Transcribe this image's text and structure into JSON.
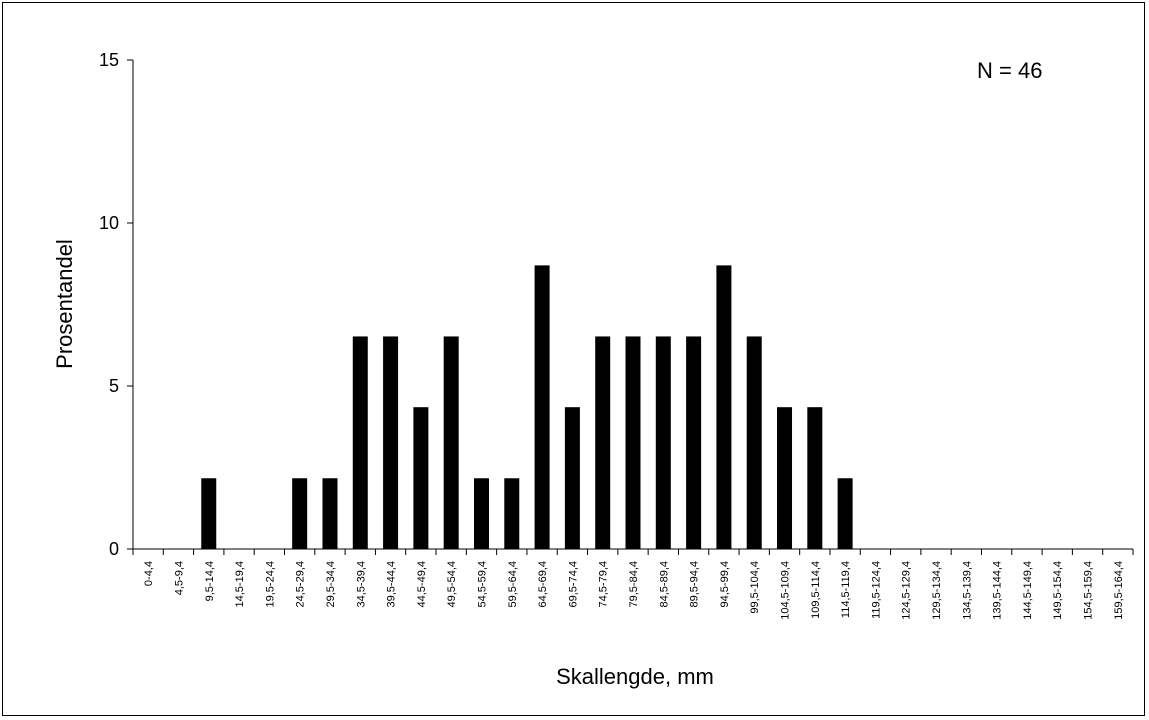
{
  "chart_data": {
    "type": "bar",
    "title": "",
    "xlabel": "Skallengde, mm",
    "ylabel": "Prosentandel",
    "annotation": "N = 46",
    "ylim": [
      0,
      15
    ],
    "yticks": [
      "0",
      "5",
      "10",
      "15"
    ],
    "categories": [
      "0-4,4",
      "4,5-9,4",
      "9,5-14,4",
      "14,5-19,4",
      "19,5-24,4",
      "24,5-29,4",
      "29,5-34,4",
      "34,5-39,4",
      "39,5-44,4",
      "44,5-49,4",
      "49,5-54,4",
      "54,5-59,4",
      "59,5-64,4",
      "64,5-69,4",
      "69,5-74,4",
      "74,5-79,4",
      "79,5-84,4",
      "84,5-89,4",
      "89,5-94,4",
      "94,5-99,4",
      "99,5-104,4",
      "104,5-109,4",
      "109,5-114,4",
      "114,5-119,4",
      "119,5-124,4",
      "124,5-129,4",
      "129,5-134,4",
      "134,5-139,4",
      "139,5-144,4",
      "144,5-149,4",
      "149,5-154,4",
      "154,5-159,4",
      "159,5-164,4"
    ],
    "values": [
      0,
      0,
      2.17,
      0,
      0,
      2.17,
      2.17,
      6.52,
      6.52,
      4.35,
      6.52,
      2.17,
      2.17,
      8.7,
      4.35,
      6.52,
      6.52,
      6.52,
      6.52,
      8.7,
      6.52,
      4.35,
      4.35,
      2.17,
      0,
      0,
      0,
      0,
      0,
      0,
      0,
      0,
      0
    ],
    "bar_color": "#000000",
    "grid": false,
    "legend": "none"
  }
}
